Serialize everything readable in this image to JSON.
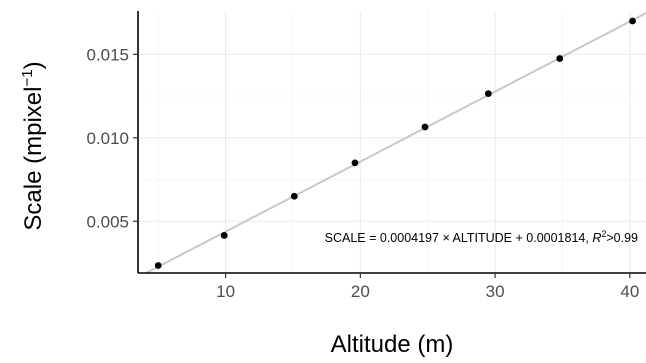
{
  "chart_data": {
    "type": "scatter",
    "title": "",
    "xlabel": "Altitude (m)",
    "ylabel_main": "Scale (mpixel",
    "ylabel_sup": "−1",
    "ylabel_close": ")",
    "xlim": [
      3.5,
      41.2
    ],
    "ylim": [
      0.0019,
      0.0176
    ],
    "x_ticks": [
      10,
      20,
      30,
      40
    ],
    "x_tick_labels": [
      "10",
      "20",
      "30",
      "40"
    ],
    "y_ticks": [
      0.005,
      0.01,
      0.015
    ],
    "y_tick_labels": [
      "0.005",
      "0.010",
      "0.015"
    ],
    "grid": true,
    "series": [
      {
        "x": [
          5.0,
          9.9,
          15.1,
          19.6,
          24.8,
          29.5,
          34.8,
          40.2
        ],
        "y": [
          0.00235,
          0.00415,
          0.0065,
          0.0085,
          0.01065,
          0.01265,
          0.01475,
          0.017
        ]
      }
    ],
    "fit": {
      "slope": 0.0004197,
      "intercept": 0.0001814
    },
    "annotation": {
      "main": "SCALE = 0.0004197 × ALTITUDE + 0.0001814, ",
      "r_symbol": "R",
      "r_sup": "2",
      "r_rest": ">0.99"
    }
  }
}
